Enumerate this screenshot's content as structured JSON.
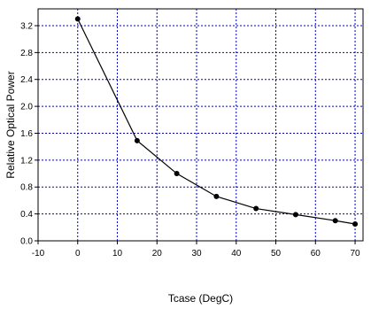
{
  "chart_data": {
    "type": "line",
    "title": "",
    "xlabel": "Tcase (DegC)",
    "ylabel": "Relative Optical Power",
    "xlim": [
      -10,
      72
    ],
    "ylim": [
      0,
      3.45
    ],
    "x_ticks": [
      -10,
      0,
      10,
      20,
      30,
      40,
      50,
      60,
      70
    ],
    "y_ticks": [
      0.0,
      0.4,
      0.8,
      1.2,
      1.6,
      2.0,
      2.4,
      2.8,
      3.2
    ],
    "x_tick_labels": [
      "-10",
      "0",
      "10",
      "20",
      "30",
      "40",
      "50",
      "60",
      "70"
    ],
    "y_tick_labels": [
      "0.0",
      "0.4",
      "0.8",
      "1.2",
      "1.6",
      "2.0",
      "2.4",
      "2.8",
      "3.2"
    ],
    "grid": true,
    "colors": {
      "line": "#000000",
      "marker": "#000000",
      "grid": "#0000cc"
    },
    "series": [
      {
        "x": [
          0,
          15,
          25,
          35,
          45,
          55,
          65,
          70
        ],
        "y": [
          3.3,
          1.49,
          1.0,
          0.66,
          0.48,
          0.39,
          0.3,
          0.25
        ]
      }
    ]
  }
}
